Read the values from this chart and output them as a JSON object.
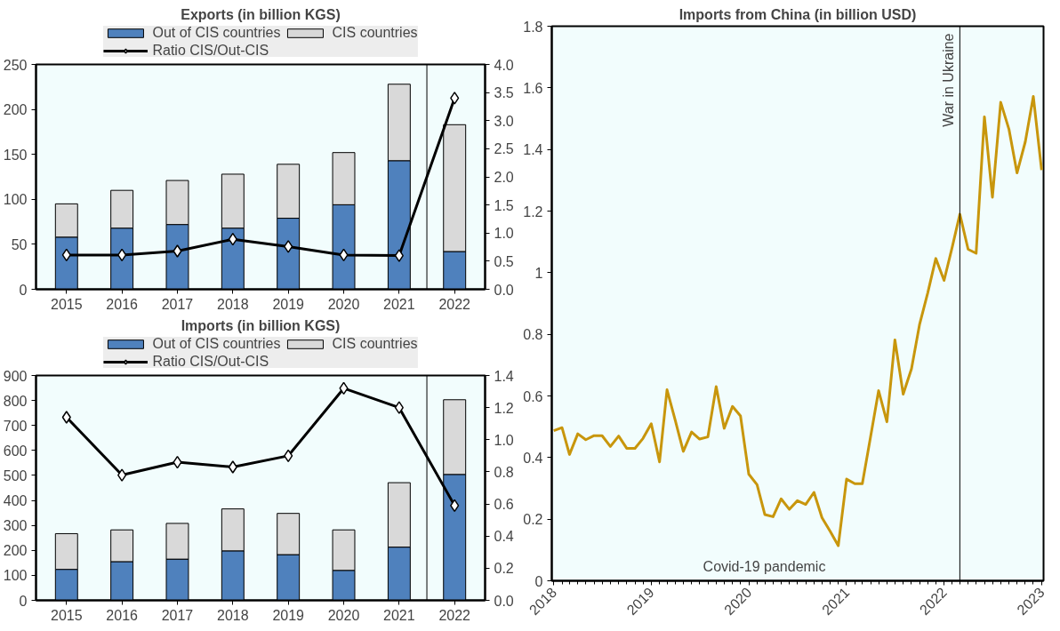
{
  "chart_data": [
    {
      "type": "bar",
      "stacked": true,
      "title": "Exports (in billion KGS)",
      "x": [
        2015,
        2016,
        2017,
        2018,
        2019,
        2020,
        2021,
        2022
      ],
      "xlim": [
        2014.45,
        2022.55
      ],
      "xticks": [
        2015,
        2016,
        2017,
        2018,
        2019,
        2020,
        2021,
        2022
      ],
      "ylim": [
        0,
        250
      ],
      "yticks": [
        0,
        50,
        100,
        150,
        200,
        250
      ],
      "y2lim": [
        0,
        4
      ],
      "y2ticks": [
        {
          "value": 0,
          "label": "0.0"
        },
        0.5,
        {
          "value": 1,
          "label": "1.0"
        },
        1.5,
        {
          "value": 2,
          "label": "2.0"
        },
        2.5,
        {
          "value": 3,
          "label": "3.0"
        },
        3.5,
        {
          "value": 4,
          "label": "4.0"
        }
      ],
      "legend": "top",
      "ref_lines": [
        {
          "axis": "x",
          "value": 2021.5,
          "color": "#000000"
        }
      ],
      "series": [
        {
          "name": "Out of CIS countries",
          "type": "bar",
          "color": "#4f81bd",
          "values": [
            58,
            68,
            72,
            68,
            79,
            94,
            143,
            42
          ]
        },
        {
          "name": "CIS countries",
          "type": "bar",
          "color": "#d9d9d9",
          "values": [
            37,
            42,
            49,
            60,
            60,
            58,
            85,
            141
          ]
        },
        {
          "name": "Ratio CIS/Out-CIS",
          "type": "line",
          "axis": "y2",
          "marker": "diamond",
          "color": "#000000",
          "values": [
            0.61,
            0.61,
            0.68,
            0.89,
            0.76,
            0.61,
            0.6,
            3.4
          ]
        }
      ]
    },
    {
      "type": "bar",
      "stacked": true,
      "title": "Imports (in billion KGS)",
      "x": [
        2015,
        2016,
        2017,
        2018,
        2019,
        2020,
        2021,
        2022
      ],
      "xlim": [
        2014.45,
        2022.55
      ],
      "xticks": [
        2015,
        2016,
        2017,
        2018,
        2019,
        2020,
        2021,
        2022
      ],
      "ylim": [
        0,
        900
      ],
      "yticks": [
        0,
        100,
        200,
        300,
        400,
        500,
        600,
        700,
        800,
        900
      ],
      "y2lim": [
        0,
        1.4
      ],
      "y2ticks": [
        {
          "value": 0,
          "label": "0.0"
        },
        0.2,
        0.4,
        0.6,
        0.8,
        {
          "value": 1,
          "label": "1.0"
        },
        1.2,
        1.4
      ],
      "legend": "top",
      "ref_lines": [
        {
          "axis": "x",
          "value": 2021.5,
          "color": "#000000"
        }
      ],
      "series": [
        {
          "name": "Out of CIS countries",
          "type": "bar",
          "color": "#4f81bd",
          "values": [
            124,
            155,
            165,
            198,
            183,
            120,
            213,
            504
          ]
        },
        {
          "name": "CIS countries",
          "type": "bar",
          "color": "#d9d9d9",
          "values": [
            143,
            127,
            143,
            168,
            165,
            162,
            258,
            299
          ]
        },
        {
          "name": "Ratio CIS/Out-CIS",
          "type": "line",
          "axis": "y2",
          "marker": "diamond",
          "color": "#000000",
          "values": [
            1.14,
            0.78,
            0.86,
            0.83,
            0.9,
            1.32,
            1.2,
            0.59
          ]
        }
      ]
    },
    {
      "type": "line",
      "title": "Imports from China (in billion USD)",
      "x": [
        "2018-01",
        "2018-02",
        "2018-03",
        "2018-04",
        "2018-05",
        "2018-06",
        "2018-07",
        "2018-08",
        "2018-09",
        "2018-10",
        "2018-11",
        "2018-12",
        "2019-01",
        "2019-02",
        "2019-03",
        "2019-04",
        "2019-05",
        "2019-06",
        "2019-07",
        "2019-08",
        "2019-09",
        "2019-10",
        "2019-11",
        "2019-12",
        "2020-01",
        "2020-02",
        "2020-03",
        "2020-04",
        "2020-05",
        "2020-06",
        "2020-07",
        "2020-08",
        "2020-09",
        "2020-10",
        "2020-11",
        "2020-12",
        "2021-01",
        "2021-02",
        "2021-03",
        "2021-04",
        "2021-05",
        "2021-06",
        "2021-07",
        "2021-08",
        "2021-09",
        "2021-10",
        "2021-11",
        "2021-12",
        "2022-01",
        "2022-02",
        "2022-03",
        "2022-04",
        "2022-05",
        "2022-06",
        "2022-07",
        "2022-08",
        "2022-09",
        "2022-10",
        "2022-11",
        "2022-12",
        "2023-01"
      ],
      "xlim": [
        "2018-01",
        "2023-01"
      ],
      "xticks": [
        "2018",
        "2019",
        "2020",
        "2021",
        "2022",
        "2023"
      ],
      "ylim": [
        0,
        1.8
      ],
      "yticks": [
        0,
        0.2,
        0.4,
        0.6,
        0.8,
        1,
        1.2,
        1.4,
        1.6,
        1.8
      ],
      "annotations": [
        "Covid-19 pandemic"
      ],
      "ref_lines": [
        {
          "axis": "x",
          "value": "2022-03",
          "label": "War in Ukraine",
          "color": "#000000"
        }
      ],
      "series": [
        {
          "color": "#c8960c",
          "values": [
            0.487,
            0.497,
            0.41,
            0.477,
            0.458,
            0.471,
            0.471,
            0.436,
            0.47,
            0.43,
            0.43,
            0.462,
            0.51,
            0.386,
            0.62,
            0.52,
            0.42,
            0.483,
            0.46,
            0.467,
            0.63,
            0.495,
            0.566,
            0.535,
            0.346,
            0.312,
            0.215,
            0.208,
            0.266,
            0.232,
            0.26,
            0.248,
            0.287,
            0.205,
            0.16,
            0.114,
            0.33,
            0.315,
            0.315,
            0.468,
            0.617,
            0.516,
            0.782,
            0.606,
            0.688,
            0.831,
            0.935,
            1.046,
            0.975,
            1.085,
            1.19,
            1.076,
            1.063,
            1.506,
            1.245,
            1.553,
            1.465,
            1.324,
            1.425,
            1.572,
            1.333
          ]
        }
      ]
    }
  ]
}
